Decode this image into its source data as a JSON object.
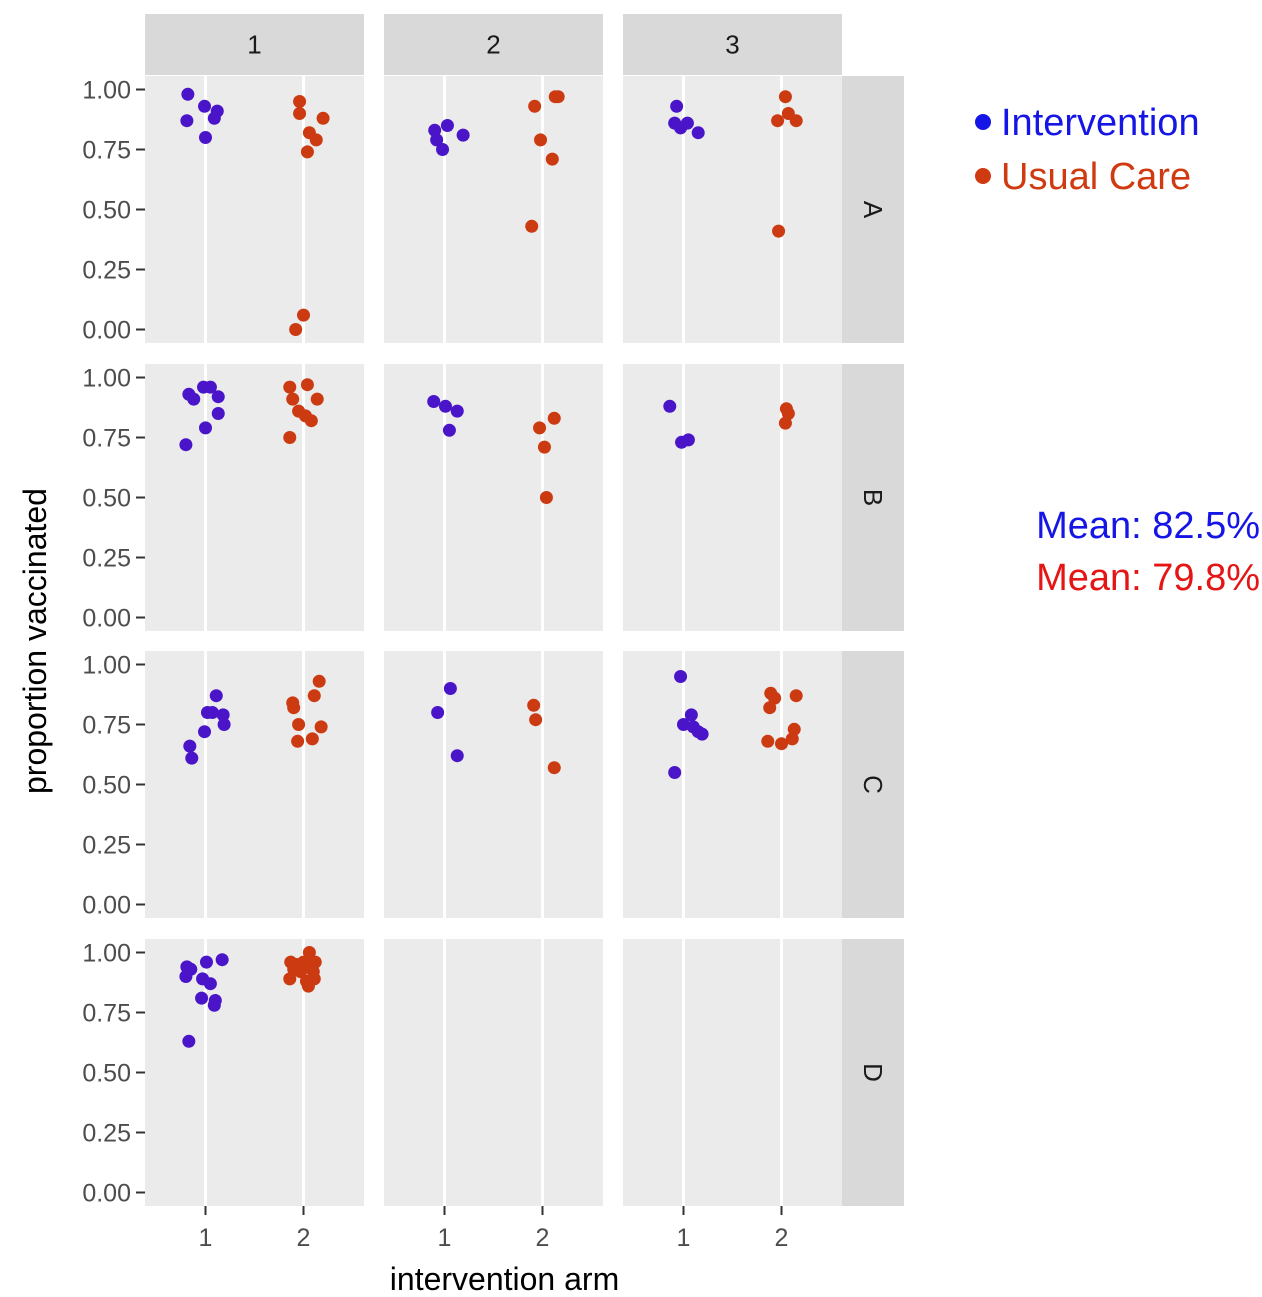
{
  "chart_data": {
    "type": "scatter",
    "facet_columns": [
      "1",
      "2",
      "3"
    ],
    "facet_rows": [
      "A",
      "B",
      "C",
      "D"
    ],
    "xlabel": "intervention arm",
    "ylabel": "proportion vaccinated",
    "x_ticks": [
      "1",
      "2"
    ],
    "y_ticks": [
      "0.00",
      "0.25",
      "0.50",
      "0.75",
      "1.00"
    ],
    "ylim": [
      0,
      1
    ],
    "grid": true,
    "colors": {
      "1": "#4a14c9",
      "2": "#cc3a12"
    },
    "panels": [
      {
        "row": "A",
        "col": "1",
        "points": [
          {
            "x": 0.82,
            "y": 0.98,
            "arm": 1
          },
          {
            "x": 0.99,
            "y": 0.93,
            "arm": 1
          },
          {
            "x": 1.12,
            "y": 0.91,
            "arm": 1
          },
          {
            "x": 0.81,
            "y": 0.87,
            "arm": 1
          },
          {
            "x": 1.09,
            "y": 0.88,
            "arm": 1
          },
          {
            "x": 1.0,
            "y": 0.8,
            "arm": 1
          },
          {
            "x": 1.96,
            "y": 0.95,
            "arm": 2
          },
          {
            "x": 1.96,
            "y": 0.9,
            "arm": 2
          },
          {
            "x": 2.2,
            "y": 0.88,
            "arm": 2
          },
          {
            "x": 2.06,
            "y": 0.82,
            "arm": 2
          },
          {
            "x": 2.13,
            "y": 0.79,
            "arm": 2
          },
          {
            "x": 2.04,
            "y": 0.74,
            "arm": 2
          },
          {
            "x": 2.0,
            "y": 0.06,
            "arm": 2
          },
          {
            "x": 1.92,
            "y": 0.0,
            "arm": 2
          }
        ]
      },
      {
        "row": "A",
        "col": "2",
        "points": [
          {
            "x": 0.9,
            "y": 0.83,
            "arm": 1
          },
          {
            "x": 1.03,
            "y": 0.85,
            "arm": 1
          },
          {
            "x": 1.19,
            "y": 0.81,
            "arm": 1
          },
          {
            "x": 0.92,
            "y": 0.79,
            "arm": 1
          },
          {
            "x": 0.98,
            "y": 0.75,
            "arm": 1
          },
          {
            "x": 1.92,
            "y": 0.93,
            "arm": 2
          },
          {
            "x": 2.13,
            "y": 0.97,
            "arm": 2
          },
          {
            "x": 2.16,
            "y": 0.97,
            "arm": 2
          },
          {
            "x": 1.98,
            "y": 0.79,
            "arm": 2
          },
          {
            "x": 2.1,
            "y": 0.71,
            "arm": 2
          },
          {
            "x": 1.89,
            "y": 0.43,
            "arm": 2
          }
        ]
      },
      {
        "row": "A",
        "col": "3",
        "points": [
          {
            "x": 0.93,
            "y": 0.93,
            "arm": 1
          },
          {
            "x": 0.91,
            "y": 0.86,
            "arm": 1
          },
          {
            "x": 1.04,
            "y": 0.86,
            "arm": 1
          },
          {
            "x": 0.97,
            "y": 0.84,
            "arm": 1
          },
          {
            "x": 1.15,
            "y": 0.82,
            "arm": 1
          },
          {
            "x": 2.04,
            "y": 0.97,
            "arm": 2
          },
          {
            "x": 1.96,
            "y": 0.87,
            "arm": 2
          },
          {
            "x": 2.07,
            "y": 0.9,
            "arm": 2
          },
          {
            "x": 2.15,
            "y": 0.87,
            "arm": 2
          },
          {
            "x": 1.97,
            "y": 0.41,
            "arm": 2
          }
        ]
      },
      {
        "row": "B",
        "col": "1",
        "points": [
          {
            "x": 0.83,
            "y": 0.93,
            "arm": 1
          },
          {
            "x": 0.88,
            "y": 0.91,
            "arm": 1
          },
          {
            "x": 0.98,
            "y": 0.96,
            "arm": 1
          },
          {
            "x": 1.05,
            "y": 0.96,
            "arm": 1
          },
          {
            "x": 1.13,
            "y": 0.92,
            "arm": 1
          },
          {
            "x": 1.13,
            "y": 0.85,
            "arm": 1
          },
          {
            "x": 1.0,
            "y": 0.79,
            "arm": 1
          },
          {
            "x": 0.8,
            "y": 0.72,
            "arm": 1
          },
          {
            "x": 1.86,
            "y": 0.96,
            "arm": 2
          },
          {
            "x": 2.04,
            "y": 0.97,
            "arm": 2
          },
          {
            "x": 1.89,
            "y": 0.91,
            "arm": 2
          },
          {
            "x": 2.14,
            "y": 0.91,
            "arm": 2
          },
          {
            "x": 1.95,
            "y": 0.86,
            "arm": 2
          },
          {
            "x": 2.02,
            "y": 0.84,
            "arm": 2
          },
          {
            "x": 2.08,
            "y": 0.82,
            "arm": 2
          },
          {
            "x": 1.86,
            "y": 0.75,
            "arm": 2
          }
        ]
      },
      {
        "row": "B",
        "col": "2",
        "points": [
          {
            "x": 0.89,
            "y": 0.9,
            "arm": 1
          },
          {
            "x": 1.01,
            "y": 0.88,
            "arm": 1
          },
          {
            "x": 1.13,
            "y": 0.86,
            "arm": 1
          },
          {
            "x": 1.05,
            "y": 0.78,
            "arm": 1
          },
          {
            "x": 1.97,
            "y": 0.79,
            "arm": 2
          },
          {
            "x": 2.12,
            "y": 0.83,
            "arm": 2
          },
          {
            "x": 2.02,
            "y": 0.71,
            "arm": 2
          },
          {
            "x": 2.04,
            "y": 0.5,
            "arm": 2
          }
        ]
      },
      {
        "row": "B",
        "col": "3",
        "points": [
          {
            "x": 0.86,
            "y": 0.88,
            "arm": 1
          },
          {
            "x": 0.98,
            "y": 0.73,
            "arm": 1
          },
          {
            "x": 1.05,
            "y": 0.74,
            "arm": 1
          },
          {
            "x": 2.05,
            "y": 0.87,
            "arm": 2
          },
          {
            "x": 2.07,
            "y": 0.85,
            "arm": 2
          },
          {
            "x": 2.04,
            "y": 0.81,
            "arm": 2
          }
        ]
      },
      {
        "row": "C",
        "col": "1",
        "points": [
          {
            "x": 1.11,
            "y": 0.87,
            "arm": 1
          },
          {
            "x": 1.02,
            "y": 0.8,
            "arm": 1
          },
          {
            "x": 1.07,
            "y": 0.8,
            "arm": 1
          },
          {
            "x": 1.18,
            "y": 0.79,
            "arm": 1
          },
          {
            "x": 1.19,
            "y": 0.75,
            "arm": 1
          },
          {
            "x": 0.99,
            "y": 0.72,
            "arm": 1
          },
          {
            "x": 0.84,
            "y": 0.66,
            "arm": 1
          },
          {
            "x": 0.86,
            "y": 0.61,
            "arm": 1
          },
          {
            "x": 2.16,
            "y": 0.93,
            "arm": 2
          },
          {
            "x": 1.89,
            "y": 0.84,
            "arm": 2
          },
          {
            "x": 1.9,
            "y": 0.82,
            "arm": 2
          },
          {
            "x": 2.11,
            "y": 0.87,
            "arm": 2
          },
          {
            "x": 1.95,
            "y": 0.75,
            "arm": 2
          },
          {
            "x": 2.18,
            "y": 0.74,
            "arm": 2
          },
          {
            "x": 1.94,
            "y": 0.68,
            "arm": 2
          },
          {
            "x": 2.09,
            "y": 0.69,
            "arm": 2
          }
        ]
      },
      {
        "row": "C",
        "col": "2",
        "points": [
          {
            "x": 0.93,
            "y": 0.8,
            "arm": 1
          },
          {
            "x": 1.06,
            "y": 0.9,
            "arm": 1
          },
          {
            "x": 1.13,
            "y": 0.62,
            "arm": 1
          },
          {
            "x": 1.91,
            "y": 0.83,
            "arm": 2
          },
          {
            "x": 1.93,
            "y": 0.77,
            "arm": 2
          },
          {
            "x": 2.12,
            "y": 0.57,
            "arm": 2
          }
        ]
      },
      {
        "row": "C",
        "col": "3",
        "points": [
          {
            "x": 0.97,
            "y": 0.95,
            "arm": 1
          },
          {
            "x": 1.08,
            "y": 0.79,
            "arm": 1
          },
          {
            "x": 1.0,
            "y": 0.75,
            "arm": 1
          },
          {
            "x": 1.1,
            "y": 0.74,
            "arm": 1
          },
          {
            "x": 1.15,
            "y": 0.72,
            "arm": 1
          },
          {
            "x": 1.19,
            "y": 0.71,
            "arm": 1
          },
          {
            "x": 0.91,
            "y": 0.55,
            "arm": 1
          },
          {
            "x": 1.89,
            "y": 0.88,
            "arm": 2
          },
          {
            "x": 1.93,
            "y": 0.86,
            "arm": 2
          },
          {
            "x": 1.88,
            "y": 0.82,
            "arm": 2
          },
          {
            "x": 2.15,
            "y": 0.87,
            "arm": 2
          },
          {
            "x": 2.13,
            "y": 0.73,
            "arm": 2
          },
          {
            "x": 2.11,
            "y": 0.69,
            "arm": 2
          },
          {
            "x": 1.86,
            "y": 0.68,
            "arm": 2
          },
          {
            "x": 2.0,
            "y": 0.67,
            "arm": 2
          }
        ]
      },
      {
        "row": "D",
        "col": "1",
        "points": [
          {
            "x": 0.81,
            "y": 0.94,
            "arm": 1
          },
          {
            "x": 0.85,
            "y": 0.93,
            "arm": 1
          },
          {
            "x": 0.8,
            "y": 0.9,
            "arm": 1
          },
          {
            "x": 1.01,
            "y": 0.96,
            "arm": 1
          },
          {
            "x": 1.17,
            "y": 0.97,
            "arm": 1
          },
          {
            "x": 0.97,
            "y": 0.89,
            "arm": 1
          },
          {
            "x": 1.05,
            "y": 0.87,
            "arm": 1
          },
          {
            "x": 0.96,
            "y": 0.81,
            "arm": 1
          },
          {
            "x": 1.1,
            "y": 0.8,
            "arm": 1
          },
          {
            "x": 1.09,
            "y": 0.78,
            "arm": 1
          },
          {
            "x": 0.83,
            "y": 0.63,
            "arm": 1
          },
          {
            "x": 2.06,
            "y": 1.0,
            "arm": 2
          },
          {
            "x": 1.87,
            "y": 0.96,
            "arm": 2
          },
          {
            "x": 1.93,
            "y": 0.95,
            "arm": 2
          },
          {
            "x": 2.0,
            "y": 0.96,
            "arm": 2
          },
          {
            "x": 2.12,
            "y": 0.96,
            "arm": 2
          },
          {
            "x": 1.9,
            "y": 0.93,
            "arm": 2
          },
          {
            "x": 2.04,
            "y": 0.94,
            "arm": 2
          },
          {
            "x": 2.1,
            "y": 0.92,
            "arm": 2
          },
          {
            "x": 1.97,
            "y": 0.92,
            "arm": 2
          },
          {
            "x": 1.86,
            "y": 0.89,
            "arm": 2
          },
          {
            "x": 2.11,
            "y": 0.89,
            "arm": 2
          },
          {
            "x": 2.03,
            "y": 0.88,
            "arm": 2
          },
          {
            "x": 2.05,
            "y": 0.86,
            "arm": 2
          }
        ]
      },
      {
        "row": "D",
        "col": "2",
        "points": []
      },
      {
        "row": "D",
        "col": "3",
        "points": []
      }
    ]
  },
  "legend": {
    "items": [
      {
        "label": "Intervention",
        "color": "#1515e6"
      },
      {
        "label": "Usual Care",
        "color": "#d03a10"
      }
    ]
  },
  "means": [
    {
      "text": "Mean: 82.5%",
      "color": "#1515e6"
    },
    {
      "text": "Mean: 79.8%",
      "color": "#e61515"
    }
  ]
}
